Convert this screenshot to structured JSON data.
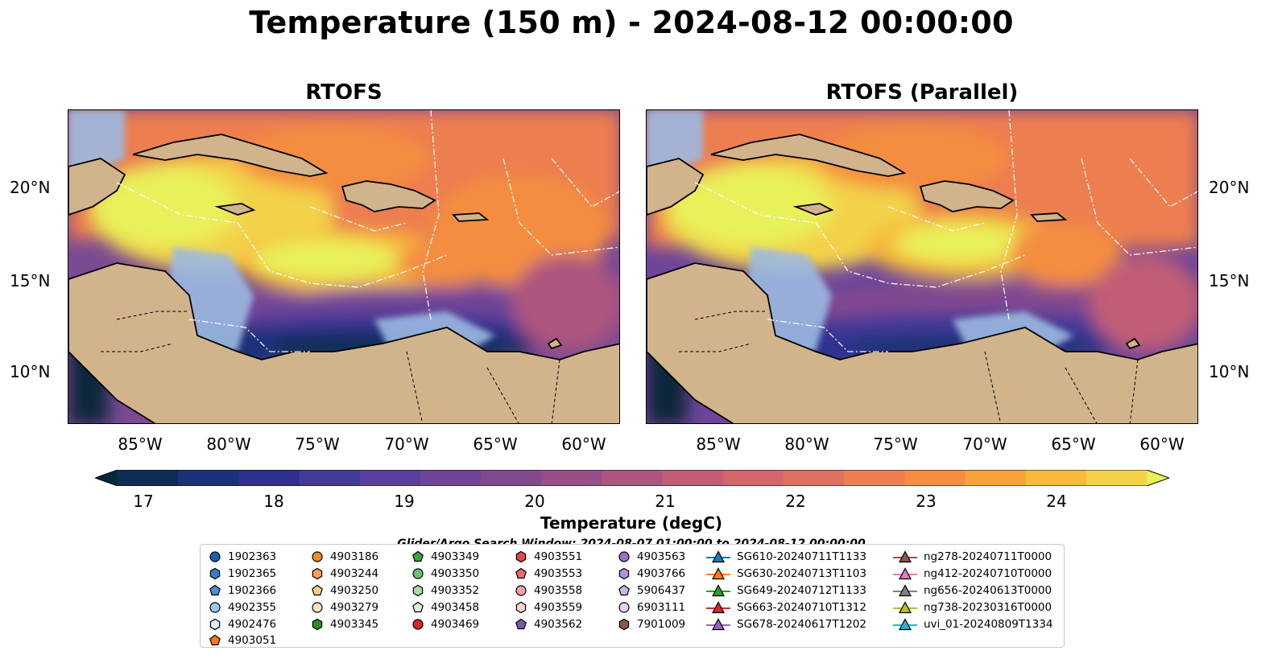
{
  "title": "Temperature (150 m) - 2024-08-12 00:00:00",
  "panels": [
    {
      "title": "RTOFS"
    },
    {
      "title": "RTOFS (Parallel)"
    }
  ],
  "axes": {
    "x_ticks": [
      "85°W",
      "80°W",
      "75°W",
      "70°W",
      "65°W",
      "60°W"
    ],
    "y_ticks": [
      "20°N",
      "15°N",
      "10°N"
    ]
  },
  "colorbar": {
    "label": "Temperature (degC)",
    "ticks": [
      "17",
      "18",
      "19",
      "20",
      "21",
      "22",
      "23",
      "24"
    ],
    "range": [
      16.5,
      24.5
    ],
    "colors": [
      "#07283a",
      "#0f2e55",
      "#1c3278",
      "#2f3190",
      "#433a9a",
      "#5a3f9c",
      "#6e4599",
      "#83498f",
      "#974f88",
      "#ac557f",
      "#c15d76",
      "#d3656b",
      "#e2705f",
      "#ed7e4f",
      "#f48d41",
      "#f7a13b",
      "#f6b93a",
      "#f3d24a",
      "#e8f05a"
    ]
  },
  "search_window": "Glider/Argo Search Window: 2024-08-07 01:00:00 to 2024-08-12 00:00:00",
  "legend": {
    "columns": [
      [
        {
          "label": "1902363",
          "marker": "circle",
          "color": "#1f5fa8"
        },
        {
          "label": "1902365",
          "marker": "hexagon",
          "color": "#3a7dc4"
        },
        {
          "label": "1902366",
          "marker": "pentagon",
          "color": "#4a8fd2"
        },
        {
          "label": "4902355",
          "marker": "circle",
          "color": "#9cc7ea"
        },
        {
          "label": "4902476",
          "marker": "hexagon",
          "color": "#dcecf8"
        },
        {
          "label": "4903051",
          "marker": "pentagon",
          "color": "#f07b14"
        }
      ],
      [
        {
          "label": "4903186",
          "marker": "circle",
          "color": "#f28a2e"
        },
        {
          "label": "4903244",
          "marker": "hexagon",
          "color": "#f5a35a"
        },
        {
          "label": "4903250",
          "marker": "pentagon",
          "color": "#f9c98f"
        },
        {
          "label": "4903279",
          "marker": "circle",
          "color": "#fde2c4"
        },
        {
          "label": "4903345",
          "marker": "hexagon",
          "color": "#2e8b2e"
        }
      ],
      [
        {
          "label": "4903349",
          "marker": "pentagon",
          "color": "#3da63d"
        },
        {
          "label": "4903350",
          "marker": "circle",
          "color": "#6fc16f"
        },
        {
          "label": "4903352",
          "marker": "hexagon",
          "color": "#a8dca0"
        },
        {
          "label": "4903458",
          "marker": "pentagon",
          "color": "#dcf5d4"
        },
        {
          "label": "4903469",
          "marker": "circle",
          "color": "#d62728"
        }
      ],
      [
        {
          "label": "4903551",
          "marker": "hexagon",
          "color": "#e14545"
        },
        {
          "label": "4903553",
          "marker": "pentagon",
          "color": "#ec6a6a"
        },
        {
          "label": "4903558",
          "marker": "circle",
          "color": "#f4a0a0"
        },
        {
          "label": "4903559",
          "marker": "hexagon",
          "color": "#fad3d3"
        },
        {
          "label": "4903562",
          "marker": "pentagon",
          "color": "#7b58b0"
        }
      ],
      [
        {
          "label": "4903563",
          "marker": "circle",
          "color": "#9a74c4"
        },
        {
          "label": "4903766",
          "marker": "hexagon",
          "color": "#b391d6"
        },
        {
          "label": "5906437",
          "marker": "pentagon",
          "color": "#cdb3e6"
        },
        {
          "label": "6903111",
          "marker": "circle",
          "color": "#e5d4f3"
        },
        {
          "label": "7901009",
          "marker": "hexagon",
          "color": "#8c564b"
        }
      ],
      [
        {
          "label": "SG610-20240711T1133",
          "marker": "triangle",
          "color": "#1f77b4"
        },
        {
          "label": "SG630-20240713T1103",
          "marker": "triangle",
          "color": "#ff7f0e"
        },
        {
          "label": "SG649-20240712T1133",
          "marker": "triangle",
          "color": "#2ca02c"
        },
        {
          "label": "SG663-20240710T1312",
          "marker": "triangle",
          "color": "#d62728"
        },
        {
          "label": "SG678-20240617T1202",
          "marker": "triangle",
          "color": "#9467bd"
        }
      ],
      [
        {
          "label": "ng278-20240711T0000",
          "marker": "triangle",
          "color": "#8c564b"
        },
        {
          "label": "ng412-20240710T0000",
          "marker": "triangle",
          "color": "#e377c2"
        },
        {
          "label": "ng656-20240613T0000",
          "marker": "triangle",
          "color": "#7f7f7f"
        },
        {
          "label": "ng738-20230316T0000",
          "marker": "triangle",
          "color": "#bcbd22"
        },
        {
          "label": "uvi_01-20240809T1334",
          "marker": "triangle",
          "color": "#17becf"
        }
      ]
    ]
  },
  "map_colors": {
    "land": "#d1b48c",
    "shelf": "#9bb9e1",
    "coast": "#000000",
    "border": "#000000",
    "eez": "#ffffff"
  }
}
